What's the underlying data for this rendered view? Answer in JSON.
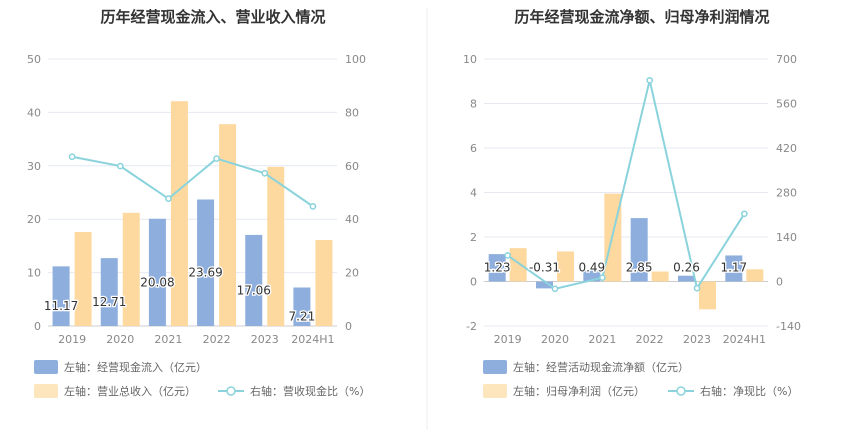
{
  "colors": {
    "bar_primary": "#8eaedd",
    "bar_secondary": "#fdd9a0",
    "line": "#8ad3dc",
    "grid": "#e6e9f2",
    "axis_text": "#888888",
    "title_text": "#333333",
    "divider": "#eeeeee"
  },
  "chart_data": [
    {
      "type": "bar",
      "title": "历年经营现金流入、营业收入情况",
      "categories": [
        "2019",
        "2020",
        "2021",
        "2022",
        "2023",
        "2024H1"
      ],
      "left_axis": {
        "ylim": [
          0,
          50
        ],
        "ticks": [
          "0",
          "10",
          "20",
          "30",
          "40",
          "50"
        ]
      },
      "right_axis": {
        "ylim": [
          0,
          100
        ],
        "ticks": [
          "0",
          "20",
          "40",
          "60",
          "80",
          "100"
        ]
      },
      "series": [
        {
          "name": "左轴：经营现金流入（亿元）",
          "type": "bar",
          "axis": "left",
          "color": "#8eaedd",
          "values": [
            11.17,
            12.71,
            20.08,
            23.69,
            17.06,
            7.21
          ],
          "labels": [
            "11.17",
            "12.71",
            "20.08",
            "23.69",
            "17.06",
            "7.21"
          ]
        },
        {
          "name": "左轴：营业总收入（亿元）",
          "type": "bar",
          "axis": "left",
          "color": "#fdd9a0",
          "values": [
            17.6,
            21.2,
            42.1,
            37.8,
            29.8,
            16.1
          ]
        },
        {
          "name": "右轴：营收现金比（%）",
          "type": "line",
          "axis": "right",
          "color": "#8ad3dc",
          "values": [
            63.4,
            59.9,
            47.7,
            62.7,
            57.2,
            44.8
          ]
        }
      ],
      "grid": true,
      "legend_position": "bottom-left"
    },
    {
      "type": "bar",
      "title": "历年经营现金流净额、归母净利润情况",
      "categories": [
        "2019",
        "2020",
        "2021",
        "2022",
        "2023",
        "2024H1"
      ],
      "left_axis": {
        "ylim": [
          -2,
          10
        ],
        "ticks": [
          "-2",
          "0",
          "2",
          "4",
          "6",
          "8",
          "10"
        ]
      },
      "right_axis": {
        "ylim": [
          -140,
          700
        ],
        "ticks": [
          "-140",
          "0",
          "140",
          "280",
          "420",
          "560",
          "700"
        ]
      },
      "series": [
        {
          "name": "左轴：经营活动现金流净额（亿元）",
          "type": "bar",
          "axis": "left",
          "color": "#8eaedd",
          "values": [
            1.23,
            -0.31,
            0.49,
            2.85,
            0.26,
            1.17
          ],
          "labels": [
            "1.23",
            "-0.31",
            "0.49",
            "2.85",
            "0.26",
            "1.17"
          ]
        },
        {
          "name": "左轴：归母净利润（亿元）",
          "type": "bar",
          "axis": "left",
          "color": "#fdd9a0",
          "values": [
            1.5,
            1.35,
            3.95,
            0.45,
            -1.25,
            0.55
          ]
        },
        {
          "name": "右轴：净现比（%）",
          "type": "line",
          "axis": "right",
          "color": "#8ad3dc",
          "values": [
            82,
            -23,
            12,
            633,
            -21,
            213
          ]
        }
      ],
      "grid": true,
      "legend_position": "bottom-left"
    }
  ]
}
